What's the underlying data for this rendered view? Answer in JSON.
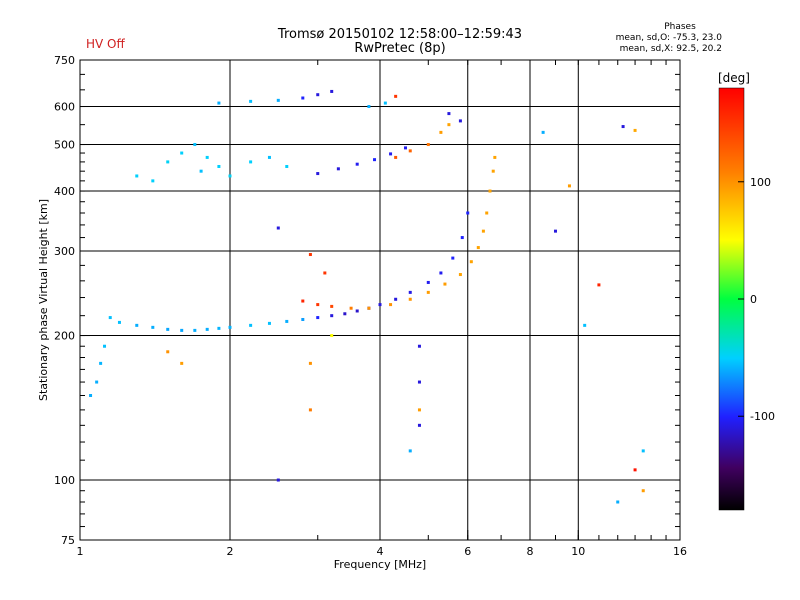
{
  "header": {
    "title_line1": "Tromsø 20150102 12:58:00–12:59:43",
    "title_line2": "RwPretec (8p)",
    "hv_status": "HV Off",
    "phases_label": "Phases",
    "phases_o": "mean, sd,O: -75.3, 23.0",
    "phases_x": "mean, sd,X: 92.5, 20.2"
  },
  "colorbar": {
    "label": "[deg]",
    "ticks": [
      100,
      0,
      -100
    ],
    "range": [
      -180,
      180
    ]
  },
  "chart_data": {
    "type": "scatter",
    "title": "Tromsø 20150102 12:58:00–12:59:43",
    "subtitle": "RwPretec (8p)",
    "xlabel": "Frequency [MHz]",
    "ylabel": "Stationary phase Virtual Height [km]",
    "xscale": "log",
    "yscale": "log",
    "xlim": [
      1,
      16
    ],
    "ylim": [
      75,
      750
    ],
    "xticks": [
      1,
      2,
      4,
      6,
      8,
      10,
      16
    ],
    "xtick_labels": [
      "1",
      "2",
      "4",
      "6",
      "8",
      "10",
      "16"
    ],
    "yticks": [
      75,
      100,
      200,
      300,
      400,
      500,
      600,
      750
    ],
    "ytick_labels": [
      "75",
      "100",
      "200",
      "300",
      "400",
      "500",
      "600",
      "750"
    ],
    "grid_x": [
      2,
      4,
      6,
      8,
      10
    ],
    "grid_y": [
      100,
      200,
      300,
      400,
      500,
      600
    ],
    "color_encoding": "phase [deg]",
    "series": [
      {
        "values": [
          {
            "x": 1.15,
            "y": 218,
            "phase": -55
          },
          {
            "x": 1.2,
            "y": 213,
            "phase": -55
          },
          {
            "x": 1.3,
            "y": 210,
            "phase": -60
          },
          {
            "x": 1.4,
            "y": 208,
            "phase": -60
          },
          {
            "x": 1.5,
            "y": 206,
            "phase": -62
          },
          {
            "x": 1.6,
            "y": 205,
            "phase": -62
          },
          {
            "x": 1.7,
            "y": 205,
            "phase": -60
          },
          {
            "x": 1.8,
            "y": 206,
            "phase": -60
          },
          {
            "x": 1.9,
            "y": 207,
            "phase": -58
          },
          {
            "x": 2.0,
            "y": 208,
            "phase": -58
          },
          {
            "x": 2.2,
            "y": 210,
            "phase": -55
          },
          {
            "x": 2.4,
            "y": 212,
            "phase": -55
          },
          {
            "x": 2.6,
            "y": 214,
            "phase": -60
          },
          {
            "x": 2.8,
            "y": 216,
            "phase": -65
          },
          {
            "x": 3.0,
            "y": 218,
            "phase": -100
          },
          {
            "x": 3.2,
            "y": 220,
            "phase": -110
          },
          {
            "x": 3.4,
            "y": 222,
            "phase": -115
          },
          {
            "x": 3.6,
            "y": 225,
            "phase": -115
          },
          {
            "x": 3.8,
            "y": 228,
            "phase": -115
          },
          {
            "x": 4.0,
            "y": 232,
            "phase": -110
          },
          {
            "x": 4.3,
            "y": 238,
            "phase": -110
          },
          {
            "x": 4.6,
            "y": 246,
            "phase": -108
          },
          {
            "x": 5.0,
            "y": 258,
            "phase": -105
          },
          {
            "x": 5.3,
            "y": 270,
            "phase": -105
          },
          {
            "x": 5.6,
            "y": 290,
            "phase": -100
          },
          {
            "x": 5.85,
            "y": 320,
            "phase": -100
          },
          {
            "x": 6.0,
            "y": 360,
            "phase": -100
          }
        ]
      },
      {
        "values": [
          {
            "x": 2.8,
            "y": 236,
            "phase": 160
          },
          {
            "x": 3.0,
            "y": 232,
            "phase": 150
          },
          {
            "x": 3.2,
            "y": 230,
            "phase": 140
          },
          {
            "x": 3.5,
            "y": 228,
            "phase": 110
          },
          {
            "x": 3.8,
            "y": 228,
            "phase": 100
          },
          {
            "x": 4.2,
            "y": 232,
            "phase": 100
          },
          {
            "x": 4.6,
            "y": 238,
            "phase": 98
          },
          {
            "x": 5.0,
            "y": 246,
            "phase": 95
          },
          {
            "x": 5.4,
            "y": 256,
            "phase": 95
          },
          {
            "x": 5.8,
            "y": 268,
            "phase": 92
          },
          {
            "x": 6.1,
            "y": 285,
            "phase": 92
          },
          {
            "x": 6.3,
            "y": 305,
            "phase": 92
          },
          {
            "x": 6.45,
            "y": 330,
            "phase": 92
          },
          {
            "x": 6.55,
            "y": 360,
            "phase": 92
          },
          {
            "x": 6.65,
            "y": 400,
            "phase": 92
          },
          {
            "x": 6.75,
            "y": 440,
            "phase": 92
          },
          {
            "x": 6.8,
            "y": 470,
            "phase": 92
          }
        ]
      },
      {
        "values": [
          {
            "x": 3.0,
            "y": 435,
            "phase": -110
          },
          {
            "x": 3.3,
            "y": 445,
            "phase": -110
          },
          {
            "x": 3.6,
            "y": 455,
            "phase": -105
          },
          {
            "x": 3.9,
            "y": 465,
            "phase": -100
          },
          {
            "x": 4.2,
            "y": 478,
            "phase": -105
          },
          {
            "x": 4.5,
            "y": 492,
            "phase": -105
          },
          {
            "x": 4.3,
            "y": 470,
            "phase": 130
          },
          {
            "x": 4.6,
            "y": 485,
            "phase": 125
          },
          {
            "x": 5.0,
            "y": 500,
            "phase": 115
          },
          {
            "x": 5.3,
            "y": 530,
            "phase": 95
          },
          {
            "x": 5.5,
            "y": 550,
            "phase": 92
          }
        ]
      },
      {
        "values": [
          {
            "x": 1.3,
            "y": 430,
            "phase": -50
          },
          {
            "x": 1.4,
            "y": 420,
            "phase": -50
          },
          {
            "x": 1.5,
            "y": 460,
            "phase": -48
          },
          {
            "x": 1.6,
            "y": 480,
            "phase": -50
          },
          {
            "x": 1.7,
            "y": 500,
            "phase": -55
          },
          {
            "x": 1.75,
            "y": 440,
            "phase": -55
          },
          {
            "x": 1.8,
            "y": 470,
            "phase": -50
          },
          {
            "x": 1.9,
            "y": 450,
            "phase": -50
          },
          {
            "x": 2.0,
            "y": 430,
            "phase": -48
          },
          {
            "x": 2.2,
            "y": 460,
            "phase": -50
          },
          {
            "x": 2.4,
            "y": 470,
            "phase": -55
          },
          {
            "x": 2.6,
            "y": 450,
            "phase": -50
          }
        ]
      },
      {
        "values": [
          {
            "x": 1.9,
            "y": 610,
            "phase": -60
          },
          {
            "x": 2.2,
            "y": 615,
            "phase": -55
          },
          {
            "x": 2.5,
            "y": 618,
            "phase": -60
          },
          {
            "x": 2.8,
            "y": 625,
            "phase": -100
          },
          {
            "x": 3.0,
            "y": 635,
            "phase": -110
          },
          {
            "x": 3.2,
            "y": 645,
            "phase": -110
          },
          {
            "x": 3.8,
            "y": 600,
            "phase": -60
          },
          {
            "x": 4.1,
            "y": 610,
            "phase": -55
          },
          {
            "x": 4.3,
            "y": 630,
            "phase": 150
          }
        ]
      },
      {
        "values": [
          {
            "x": 1.05,
            "y": 150,
            "phase": -60
          },
          {
            "x": 1.08,
            "y": 160,
            "phase": -60
          },
          {
            "x": 1.1,
            "y": 175,
            "phase": -58
          },
          {
            "x": 1.12,
            "y": 190,
            "phase": -55
          },
          {
            "x": 1.5,
            "y": 185,
            "phase": 100
          },
          {
            "x": 1.6,
            "y": 175,
            "phase": 95
          },
          {
            "x": 2.5,
            "y": 100,
            "phase": -110
          },
          {
            "x": 2.9,
            "y": 140,
            "phase": 110
          },
          {
            "x": 2.9,
            "y": 175,
            "phase": 100
          },
          {
            "x": 4.8,
            "y": 190,
            "phase": -110
          },
          {
            "x": 4.8,
            "y": 160,
            "phase": -110
          },
          {
            "x": 4.8,
            "y": 140,
            "phase": 95
          },
          {
            "x": 4.8,
            "y": 130,
            "phase": -110
          },
          {
            "x": 4.6,
            "y": 115,
            "phase": -60
          },
          {
            "x": 13.0,
            "y": 105,
            "phase": 170
          },
          {
            "x": 13.5,
            "y": 115,
            "phase": -55
          },
          {
            "x": 13.5,
            "y": 95,
            "phase": 95
          },
          {
            "x": 12.0,
            "y": 90,
            "phase": -60
          },
          {
            "x": 9.0,
            "y": 330,
            "phase": -110
          },
          {
            "x": 10.3,
            "y": 210,
            "phase": -55
          },
          {
            "x": 11.0,
            "y": 255,
            "phase": 160
          },
          {
            "x": 12.3,
            "y": 545,
            "phase": -110
          },
          {
            "x": 13.0,
            "y": 535,
            "phase": 90
          },
          {
            "x": 8.5,
            "y": 530,
            "phase": -60
          },
          {
            "x": 9.6,
            "y": 410,
            "phase": 95
          },
          {
            "x": 2.5,
            "y": 335,
            "phase": -110
          },
          {
            "x": 2.9,
            "y": 295,
            "phase": 150
          },
          {
            "x": 3.1,
            "y": 270,
            "phase": 150
          },
          {
            "x": 5.5,
            "y": 580,
            "phase": -110
          },
          {
            "x": 5.8,
            "y": 560,
            "phase": -110
          },
          {
            "x": 3.2,
            "y": 200,
            "phase": 50
          }
        ]
      }
    ]
  }
}
